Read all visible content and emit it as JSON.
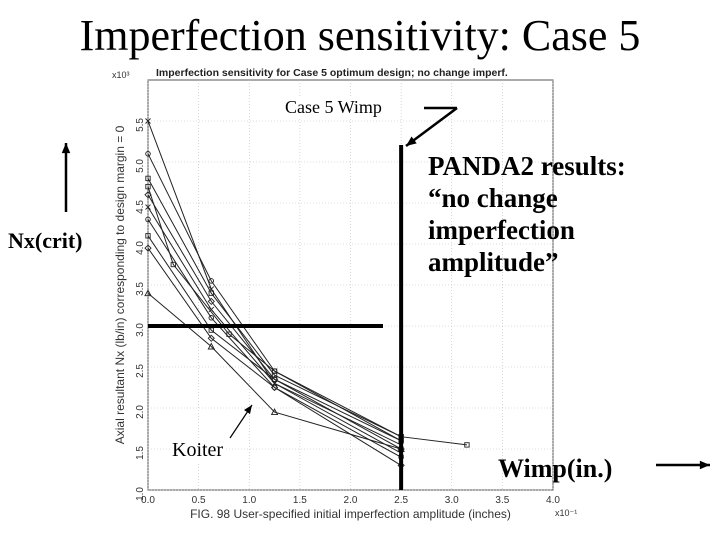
{
  "slide": {
    "title": "Imperfection sensitivity: Case 5",
    "annotations": {
      "case5_wimp": "Case 5 Wimp",
      "nx_crit": "Nx(crit)",
      "koiter": "Koiter",
      "panda2_results": "PANDA2 results: “no change imperfection amplitude”",
      "wimp_inches": "Wimp(in.)"
    }
  },
  "chart_data": {
    "type": "line",
    "title": "Imperfection sensitivity for Case 5 optimum design; no change imperf.",
    "xlabel": "FIG. 98 User-specified initial imperfection amplitude (inches)",
    "ylabel": "Axial resultant Nx (lb/in) corresponding to design margin = 0",
    "x_exponent_label": "x10⁻¹",
    "y_exponent_label": "x10³",
    "xlim": [
      0,
      4.0
    ],
    "ylim": [
      1.0,
      6.0
    ],
    "xticks": [
      "0.0",
      "0.5",
      "1.0",
      "1.5",
      "2.0",
      "2.5",
      "3.0",
      "3.5",
      "4.0"
    ],
    "yticks": [
      "1.0",
      "1.5",
      "2.0",
      "2.5",
      "3.0",
      "3.5",
      "4.0",
      "4.5",
      "5.0",
      "5.5"
    ],
    "grid": true,
    "series": [
      {
        "x": [
          0,
          0.625,
          1.25,
          2.5
        ],
        "y": [
          5.5,
          3.45,
          2.3,
          1.55
        ]
      },
      {
        "x": [
          0,
          0.625,
          1.25,
          2.5
        ],
        "y": [
          5.1,
          3.55,
          2.45,
          1.6
        ]
      },
      {
        "x": [
          0,
          0.625,
          1.25,
          2.5
        ],
        "y": [
          4.8,
          3.4,
          2.4,
          1.65
        ]
      },
      {
        "x": [
          0,
          0.625,
          1.25,
          2.5
        ],
        "y": [
          4.6,
          3.3,
          2.35,
          1.5
        ]
      },
      {
        "x": [
          0,
          0.625,
          1.25,
          2.5
        ],
        "y": [
          4.45,
          3.2,
          2.3,
          1.45
        ]
      },
      {
        "x": [
          0,
          0.625,
          1.25,
          2.5
        ],
        "y": [
          4.3,
          3.1,
          2.25,
          1.4
        ]
      },
      {
        "x": [
          0,
          0.625,
          1.25,
          2.5
        ],
        "y": [
          4.1,
          2.95,
          2.35,
          1.6
        ]
      },
      {
        "x": [
          0,
          0.625,
          1.25,
          2.5
        ],
        "y": [
          3.95,
          2.85,
          2.25,
          1.3
        ]
      },
      {
        "x": [
          0,
          0.625,
          1.25,
          2.5
        ],
        "y": [
          3.4,
          2.75,
          1.95,
          1.5
        ]
      },
      {
        "x": [
          0,
          0.25,
          0.8,
          1.25,
          2.5,
          3.15
        ],
        "y": [
          4.7,
          3.75,
          2.9,
          2.45,
          1.65,
          1.55
        ]
      }
    ],
    "reference_line_y": 3.0,
    "reference_line_x": 2.5
  }
}
